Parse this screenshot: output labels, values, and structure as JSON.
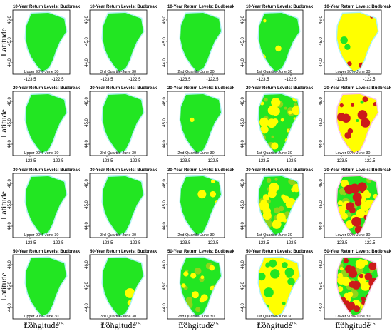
{
  "figure": {
    "row_titles": [
      "10-Year Return Levels: Budbreak",
      "20-Year Return Levels: Budbreak",
      "30-Year Return Levels: Budbreak",
      "50-Year Return Levels: Budbreak"
    ],
    "column_captions": [
      "Upper 90%-June 30",
      "3rd Quartile-June 30",
      "2nd Quartile-June 30",
      "1st Quartile-June 30",
      "Lower 90%-June 30"
    ],
    "y_ticks": [
      "46.0",
      "45.0",
      "44.0"
    ],
    "x_ticks": [
      "-123.5",
      "-122.5"
    ],
    "y_axis_label": "Latitude",
    "x_axis_label": "Longitude"
  },
  "colors": {
    "green": "#22e622",
    "olive": "#8fd41a",
    "yellow": "#ffff00",
    "red": "#cc1a1a",
    "cyan_halo": "#aef2f2",
    "pink_halo": "#f7c6e8"
  },
  "panel_data": [
    [
      {
        "yellow": 0.0,
        "red": 0.0
      },
      {
        "yellow": 0.0,
        "red": 0.0
      },
      {
        "yellow": 0.0,
        "red": 0.0
      },
      {
        "yellow": 0.06,
        "red": 0.0
      },
      {
        "yellow": 0.88,
        "red": 0.07
      }
    ],
    [
      {
        "yellow": 0.0,
        "red": 0.0
      },
      {
        "yellow": 0.0,
        "red": 0.0
      },
      {
        "yellow": 0.02,
        "red": 0.0
      },
      {
        "yellow": 0.38,
        "red": 0.0
      },
      {
        "yellow": 0.7,
        "red": 0.25
      }
    ],
    [
      {
        "yellow": 0.0,
        "red": 0.0
      },
      {
        "yellow": 0.01,
        "red": 0.0
      },
      {
        "yellow": 0.08,
        "red": 0.0
      },
      {
        "yellow": 0.52,
        "red": 0.01
      },
      {
        "yellow": 0.58,
        "red": 0.36
      }
    ],
    [
      {
        "yellow": 0.01,
        "red": 0.0
      },
      {
        "yellow": 0.04,
        "red": 0.0
      },
      {
        "yellow": 0.22,
        "red": 0.0
      },
      {
        "yellow": 0.66,
        "red": 0.02
      },
      {
        "yellow": 0.45,
        "red": 0.48
      }
    ]
  ]
}
